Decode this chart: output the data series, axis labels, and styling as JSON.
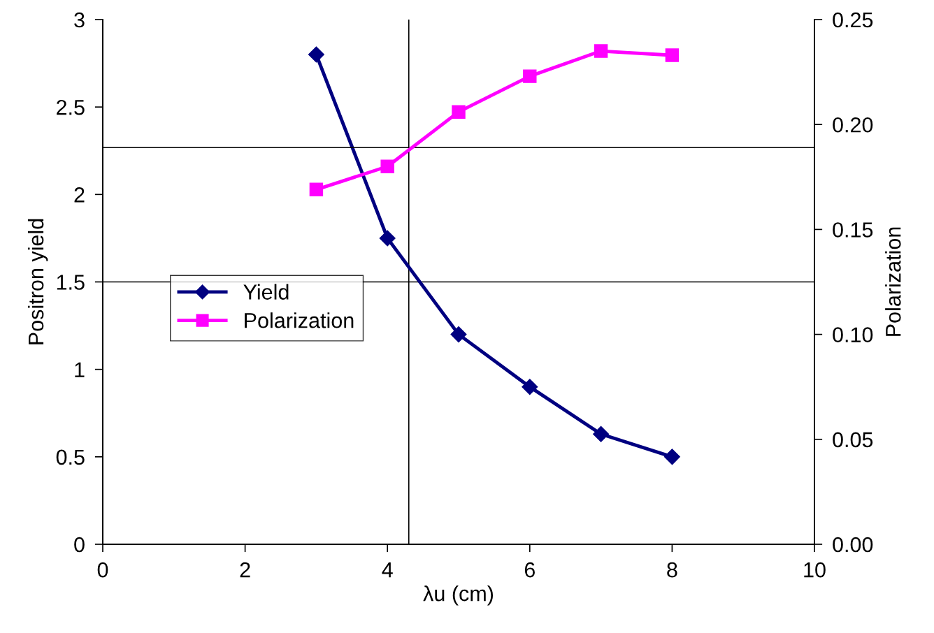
{
  "chart_data": {
    "type": "line",
    "xlabel": "λu (cm)",
    "ylabel": "Positron yield",
    "y2label": "Polarization",
    "x": [
      3,
      4,
      5,
      6,
      7,
      8
    ],
    "series": [
      {
        "name": "Yield",
        "color": "#000080",
        "marker": "diamond",
        "values": [
          2.8,
          1.75,
          1.2,
          0.9,
          0.63,
          0.5
        ]
      },
      {
        "name": "Polarization",
        "color": "#ff00ff",
        "marker": "square",
        "axis": "y2",
        "values": [
          0.169,
          0.18,
          0.206,
          0.223,
          0.235,
          0.233
        ]
      }
    ],
    "xlim": [
      0,
      10
    ],
    "xticks": [
      0,
      2,
      4,
      6,
      8,
      10
    ],
    "ylim": [
      0,
      3
    ],
    "yticks": [
      0,
      0.5,
      1,
      1.5,
      2,
      2.5,
      3
    ],
    "y2lim": [
      0,
      0.25
    ],
    "y2ticks": [
      {
        "value": 0,
        "label": "0.00"
      },
      {
        "value": 0.05,
        "label": "0.05"
      },
      {
        "value": 0.1,
        "label": "0.10"
      },
      {
        "value": 0.15,
        "label": "0.15"
      },
      {
        "value": 0.2,
        "label": "0.20"
      },
      0.25
    ],
    "ref_lines": [
      {
        "axis": "x",
        "value": 4.3,
        "color": "#000000"
      },
      {
        "axis": "y",
        "value": 1.5,
        "color": "#000000"
      },
      {
        "axis": "y2",
        "value": 0.189,
        "color": "#000000"
      }
    ],
    "grid": false,
    "legend": "left"
  }
}
